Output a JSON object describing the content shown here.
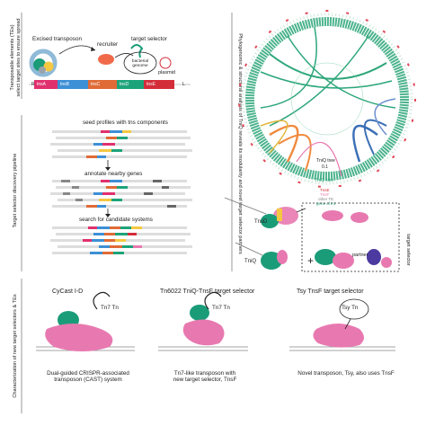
{
  "panel_a": {
    "side_label_line1": "Transposable elements (TEs)",
    "side_label_line2": "select target sites to ensure spread",
    "excised_transposon": "Excised transposon",
    "recruiter": "recruiter",
    "target_selector": "target selector",
    "bacterial_genome": "bacterial genome",
    "plasmid": "plasmid",
    "genes": [
      {
        "label": "R",
        "color": "#ffffff"
      },
      {
        "label": "tnsA",
        "color": "#e0306e"
      },
      {
        "label": "tnsB",
        "color": "#3d8fd6"
      },
      {
        "label": "tnsC",
        "color": "#e06b37"
      },
      {
        "label": "tnsD",
        "color": "#1da37a"
      },
      {
        "label": "tnsE",
        "color": "#d42d3a"
      },
      {
        "label": "L",
        "color": "#ffffff"
      }
    ]
  },
  "panel_b": {
    "side_label": "Target selector discovery pipeline",
    "step1": "seed profiles with tns components",
    "step2": "annotate nearby genes",
    "step3": "search for candidate systems"
  },
  "panel_c": {
    "side_label": "Phylogenomic & structural analysis of TniQ reveals its modularity and novel target selector partners",
    "tree_label": "TniQ tree",
    "scale": "0.1",
    "size_label": "TniQ size",
    "legend": [
      "TnsE",
      "TnsF",
      "other TE",
      "gene of int"
    ],
    "tnsd": "TnsD",
    "tniq": "TniQ",
    "partner": "partner",
    "target_selector_vertical": "target selector",
    "plus": "+"
  },
  "panel_d": {
    "side_label": "Characterization of new target selectors & TEs",
    "sys1_title": "CyCast I-D",
    "sys1_tn": "Tn7 Tn",
    "sys1_caption_l1": "Dual-guided CRISPR-associated",
    "sys1_caption_l2": "transposon (CAST) system",
    "sys2_title": "Tn6022 TniQ-TnsF target selector",
    "sys2_tn": "Tn7 Tn",
    "sys2_caption_l1": "Tn7-like transposon with",
    "sys2_caption_l2": "new target selector, TnsF",
    "sys3_title": "Tsy TnsF target selector",
    "sys3_tn": "Tsy Tn",
    "sys3_caption": "Novel transposon, Tsy, also uses TnsF"
  },
  "colors": {
    "teal": "#1b9c79",
    "pink": "#e879b0",
    "tree_green": "#2da67a",
    "tree_orange": "#f08a3e",
    "tree_blue": "#3b6fb6"
  }
}
